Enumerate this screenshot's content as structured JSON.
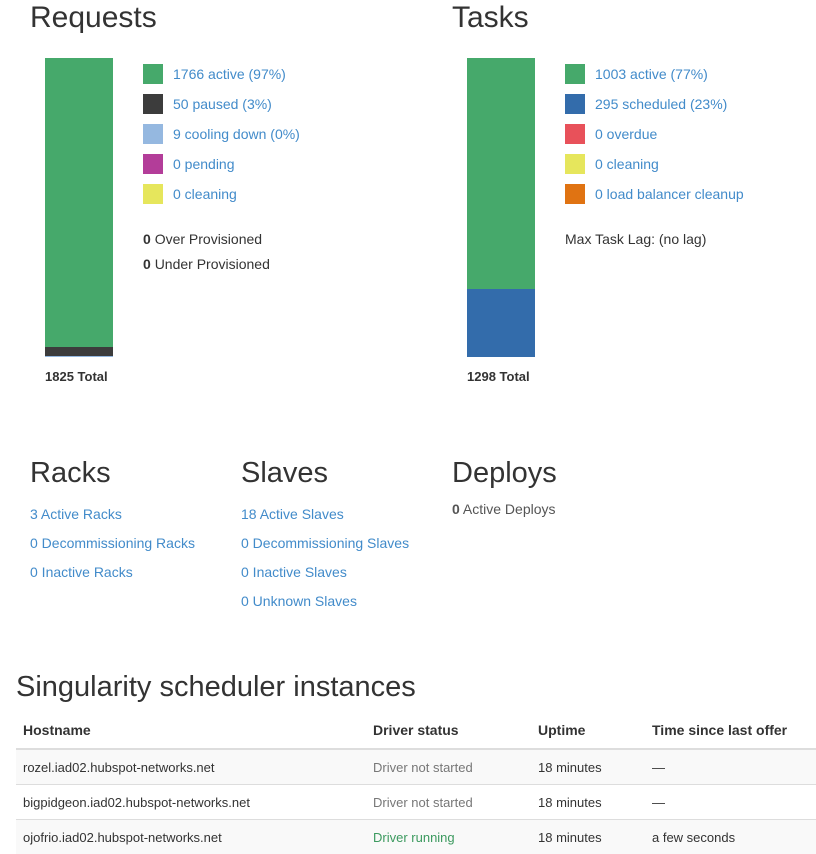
{
  "requests": {
    "title": "Requests",
    "total_label": "1825 Total",
    "legend": [
      {
        "label": "1766 active (97%)",
        "color": "#46a96b",
        "value": 1766
      },
      {
        "label": "50 paused (3%)",
        "color": "#3c3c3c",
        "value": 50
      },
      {
        "label": "9 cooling down (0%)",
        "color": "#95b8e0",
        "value": 9
      },
      {
        "label": "0 pending",
        "color": "#b33d99",
        "value": 0
      },
      {
        "label": "0 cleaning",
        "color": "#e6e65c",
        "value": 0
      }
    ],
    "over_count": "0",
    "over_label": "Over Provisioned",
    "under_count": "0",
    "under_label": "Under Provisioned"
  },
  "tasks": {
    "title": "Tasks",
    "total_label": "1298 Total",
    "legend": [
      {
        "label": "1003 active (77%)",
        "color": "#46a96b",
        "value": 1003
      },
      {
        "label": "295 scheduled (23%)",
        "color": "#336cab",
        "value": 295
      },
      {
        "label": "0 overdue",
        "color": "#e8515a",
        "value": 0
      },
      {
        "label": "0 cleaning",
        "color": "#e6e65c",
        "value": 0
      },
      {
        "label": "0 load balancer cleanup",
        "color": "#e07312",
        "value": 0
      }
    ],
    "lag_label": "Max Task Lag: (no lag)"
  },
  "racks": {
    "title": "Racks",
    "links": [
      "3 Active Racks",
      "0 Decommissioning Racks",
      "0 Inactive Racks"
    ]
  },
  "slaves": {
    "title": "Slaves",
    "links": [
      "18 Active Slaves",
      "0 Decommissioning Slaves",
      "0 Inactive Slaves",
      "0 Unknown Slaves"
    ]
  },
  "deploys": {
    "title": "Deploys",
    "count": "0",
    "label": "Active Deploys"
  },
  "instances": {
    "title": "Singularity scheduler instances",
    "headers": [
      "Hostname",
      "Driver status",
      "Uptime",
      "Time since last offer"
    ],
    "rows": [
      {
        "hostname": "rozel.iad02.hubspot-networks.net",
        "status": "Driver not started",
        "uptime": "18 minutes",
        "last_offer": "—"
      },
      {
        "hostname": "bigpidgeon.iad02.hubspot-networks.net",
        "status": "Driver not started",
        "uptime": "18 minutes",
        "last_offer": "—"
      },
      {
        "hostname": "ojofrio.iad02.hubspot-networks.net",
        "status": "Driver running",
        "uptime": "18 minutes",
        "last_offer": "a few seconds"
      }
    ]
  }
}
